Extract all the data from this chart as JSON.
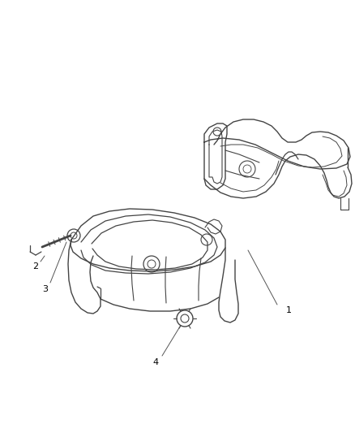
{
  "background_color": "#ffffff",
  "line_color": "#444444",
  "label_color": "#000000",
  "fig_width": 4.38,
  "fig_height": 5.33,
  "dpi": 100,
  "labels": [
    "1",
    "2",
    "3",
    "4"
  ],
  "label_fs": 8
}
